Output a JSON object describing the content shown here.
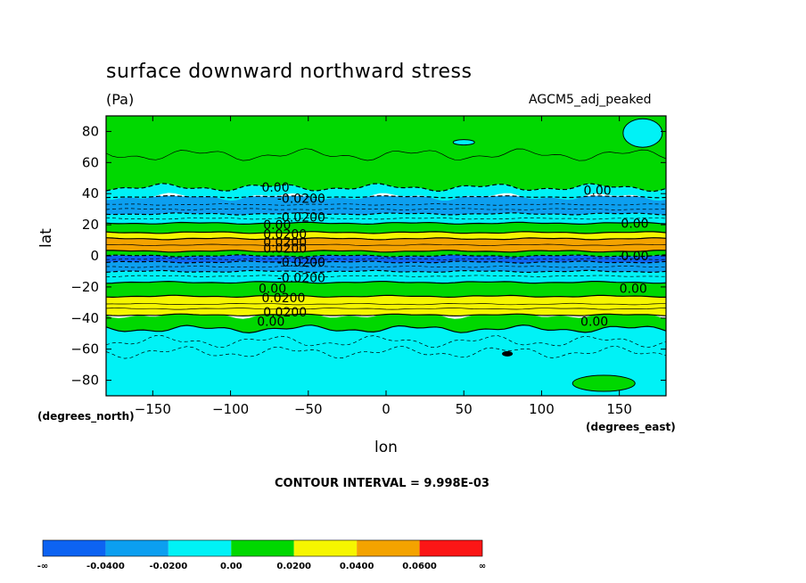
{
  "chart_data": {
    "type": "heatmap",
    "title": "surface downward northward stress",
    "units": "(Pa)",
    "dataset": "AGCM5_adj_peaked",
    "xlabel": "lon",
    "ylabel": "lat",
    "x_unit_tag": "(degrees_east)",
    "y_unit_tag": "(degrees_north)",
    "footer": "CONTOUR INTERVAL = 9.998E-03",
    "xlim": [
      -180,
      180
    ],
    "ylim": [
      -90,
      90
    ],
    "xticks": [
      -150,
      -100,
      -50,
      0,
      50,
      100,
      150
    ],
    "yticks": [
      80,
      60,
      40,
      20,
      0,
      -20,
      -40,
      -60,
      -80
    ],
    "xtick_labels": [
      "−150",
      "−100",
      "−50",
      "0",
      "50",
      "100",
      "150"
    ],
    "ytick_labels": [
      "80",
      "60",
      "40",
      "20",
      "0",
      "−20",
      "−40",
      "−60",
      "−80"
    ],
    "colorbar": {
      "labels": [
        "-∞",
        "-0.0400",
        "-0.0200",
        "0.00",
        "0.0200",
        "0.0400",
        "0.0600",
        "∞"
      ],
      "colors": [
        "#0d63f2",
        "#0c9ff0",
        "#00f2f6",
        "#00d800",
        "#f6f600",
        "#f4a300",
        "#fb1616"
      ]
    },
    "zonal_bands": [
      {
        "lat": [
          -90,
          -47
        ],
        "class": 2
      },
      {
        "lat": [
          -47,
          -38
        ],
        "class": 3
      },
      {
        "lat": [
          -38,
          -26
        ],
        "class": 4
      },
      {
        "lat": [
          -26,
          -17
        ],
        "class": 3
      },
      {
        "lat": [
          -17,
          -10
        ],
        "class": 2
      },
      {
        "lat": [
          -10,
          -4
        ],
        "class": 1
      },
      {
        "lat": [
          -4,
          0
        ],
        "class": 0
      },
      {
        "lat": [
          0,
          3
        ],
        "class": 3
      },
      {
        "lat": [
          3,
          11
        ],
        "class": 5
      },
      {
        "lat": [
          11,
          15
        ],
        "class": 4
      },
      {
        "lat": [
          15,
          21
        ],
        "class": 3
      },
      {
        "lat": [
          21,
          27
        ],
        "class": 2
      },
      {
        "lat": [
          27,
          38
        ],
        "class": 1
      },
      {
        "lat": [
          38,
          44
        ],
        "class": 2
      },
      {
        "lat": [
          44,
          90
        ],
        "class": 3
      }
    ],
    "contour_labels": [
      {
        "text": "0.00",
        "lon": -80,
        "lat": 44
      },
      {
        "text": "-0.0200",
        "lon": -70,
        "lat": 37
      },
      {
        "text": "-0.0200",
        "lon": -70,
        "lat": 25
      },
      {
        "text": "0.00",
        "lon": -79,
        "lat": 20
      },
      {
        "text": "0.0200",
        "lon": -79,
        "lat": 14
      },
      {
        "text": "0.0200",
        "lon": -79,
        "lat": 9
      },
      {
        "text": "0.0200",
        "lon": -79,
        "lat": 5
      },
      {
        "text": "-0.0200",
        "lon": -70,
        "lat": -4
      },
      {
        "text": "-0.0200",
        "lon": -70,
        "lat": -14
      },
      {
        "text": "0.00",
        "lon": -82,
        "lat": -21
      },
      {
        "text": "0.0200",
        "lon": -80,
        "lat": -27
      },
      {
        "text": "0.0200",
        "lon": -79,
        "lat": -36
      },
      {
        "text": "0.00",
        "lon": -83,
        "lat": -42
      },
      {
        "text": "0.00",
        "lon": 151,
        "lat": 21
      },
      {
        "text": "0.00",
        "lon": 151,
        "lat": 0
      },
      {
        "text": "0.00",
        "lon": 150,
        "lat": -21
      },
      {
        "text": "0.00",
        "lon": 125,
        "lat": -42
      },
      {
        "text": "0.00",
        "lon": 127,
        "lat": 42
      }
    ]
  }
}
